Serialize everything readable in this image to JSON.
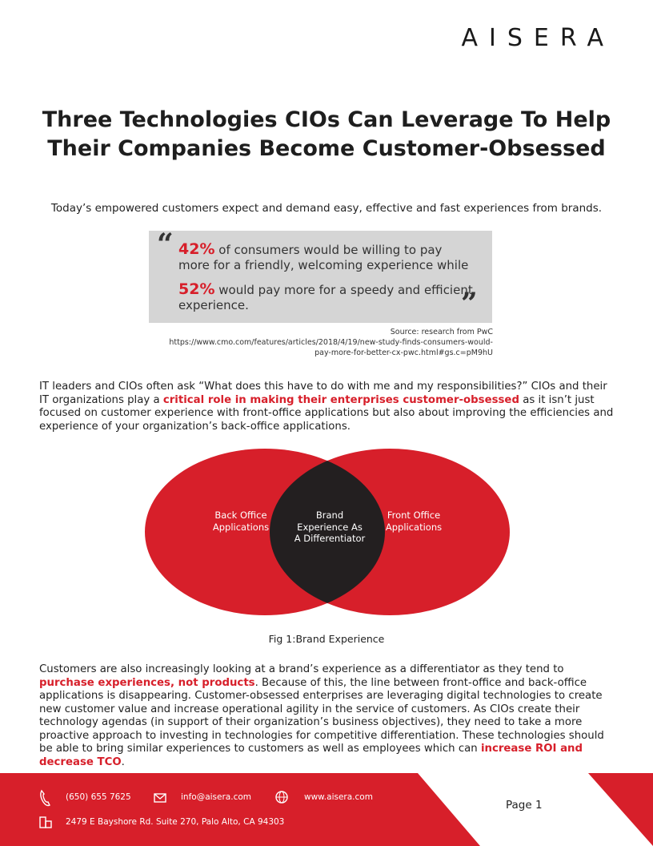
{
  "logo": "AiSERA",
  "title": [
    "Three Technologies CIOs Can Leverage To Help",
    "Their Companies Become Customer-Obsessed"
  ],
  "intro": "Today’s empowered customers expect and demand easy, effective and fast experiences from brands.",
  "quote": {
    "stat1": "42%",
    "text1": "of consumers would be willing to pay more for a friendly, welcoming experience while",
    "stat2": "52%",
    "text2": "would pay more for a speedy and efficient experience."
  },
  "source": {
    "label": "Source: research from PwC",
    "url": [
      "https://www.cmo.com/features/articles/2018/4/19/new-study-finds-consumers-would-",
      "pay-more-for-better-cx-pwc.html#gs.c=pM9hU"
    ]
  },
  "paragraph1": [
    {
      "text": "IT leaders and CIOs often ask “What does this have to do with me and my responsibilities?” CIOs and their IT organizations play a ",
      "highlight": false
    },
    {
      "text": "critical role in making their enterprises customer-obsessed",
      "highlight": true
    },
    {
      "text": " as it isn’t just focused on customer experience with front-office applications but also about improving the efficiencies and experience of your organization’s back-office applications.",
      "highlight": false
    }
  ],
  "venn": {
    "left": "Back Office Applications",
    "center": "Brand Experience As A Differentiator",
    "right": "Front Office Applications",
    "caption": "Fig 1:Brand Experience"
  },
  "paragraph2": [
    {
      "text": "Customers are also increasingly looking at a brand’s experience as a differentiator as they tend to ",
      "highlight": false
    },
    {
      "text": "purchase experiences, not products",
      "highlight": true
    },
    {
      "text": ". Because of this, the line between front-office and back-office applications is disappearing. Customer-obsessed enterprises are leveraging digital technologies to create new customer value and increase operational agility in the service of customers. As CIOs create their technology agendas (in support of their organization’s business objectives), they need to take a more proactive approach to investing in technologies for competitive differentiation. These technologies should be able to bring similar experiences to customers as well as employees which can ",
      "highlight": false
    },
    {
      "text": "increase ROI and decrease TCO",
      "highlight": true
    },
    {
      "text": ".",
      "highlight": false
    }
  ],
  "footer": {
    "phone": "(650) 655 7625",
    "email": "info@aisera.com",
    "web": "www.aisera.com",
    "address": "2479 E Bayshore Rd. Suite 270, Palo Alto, CA 94303",
    "page": "Page 1"
  }
}
